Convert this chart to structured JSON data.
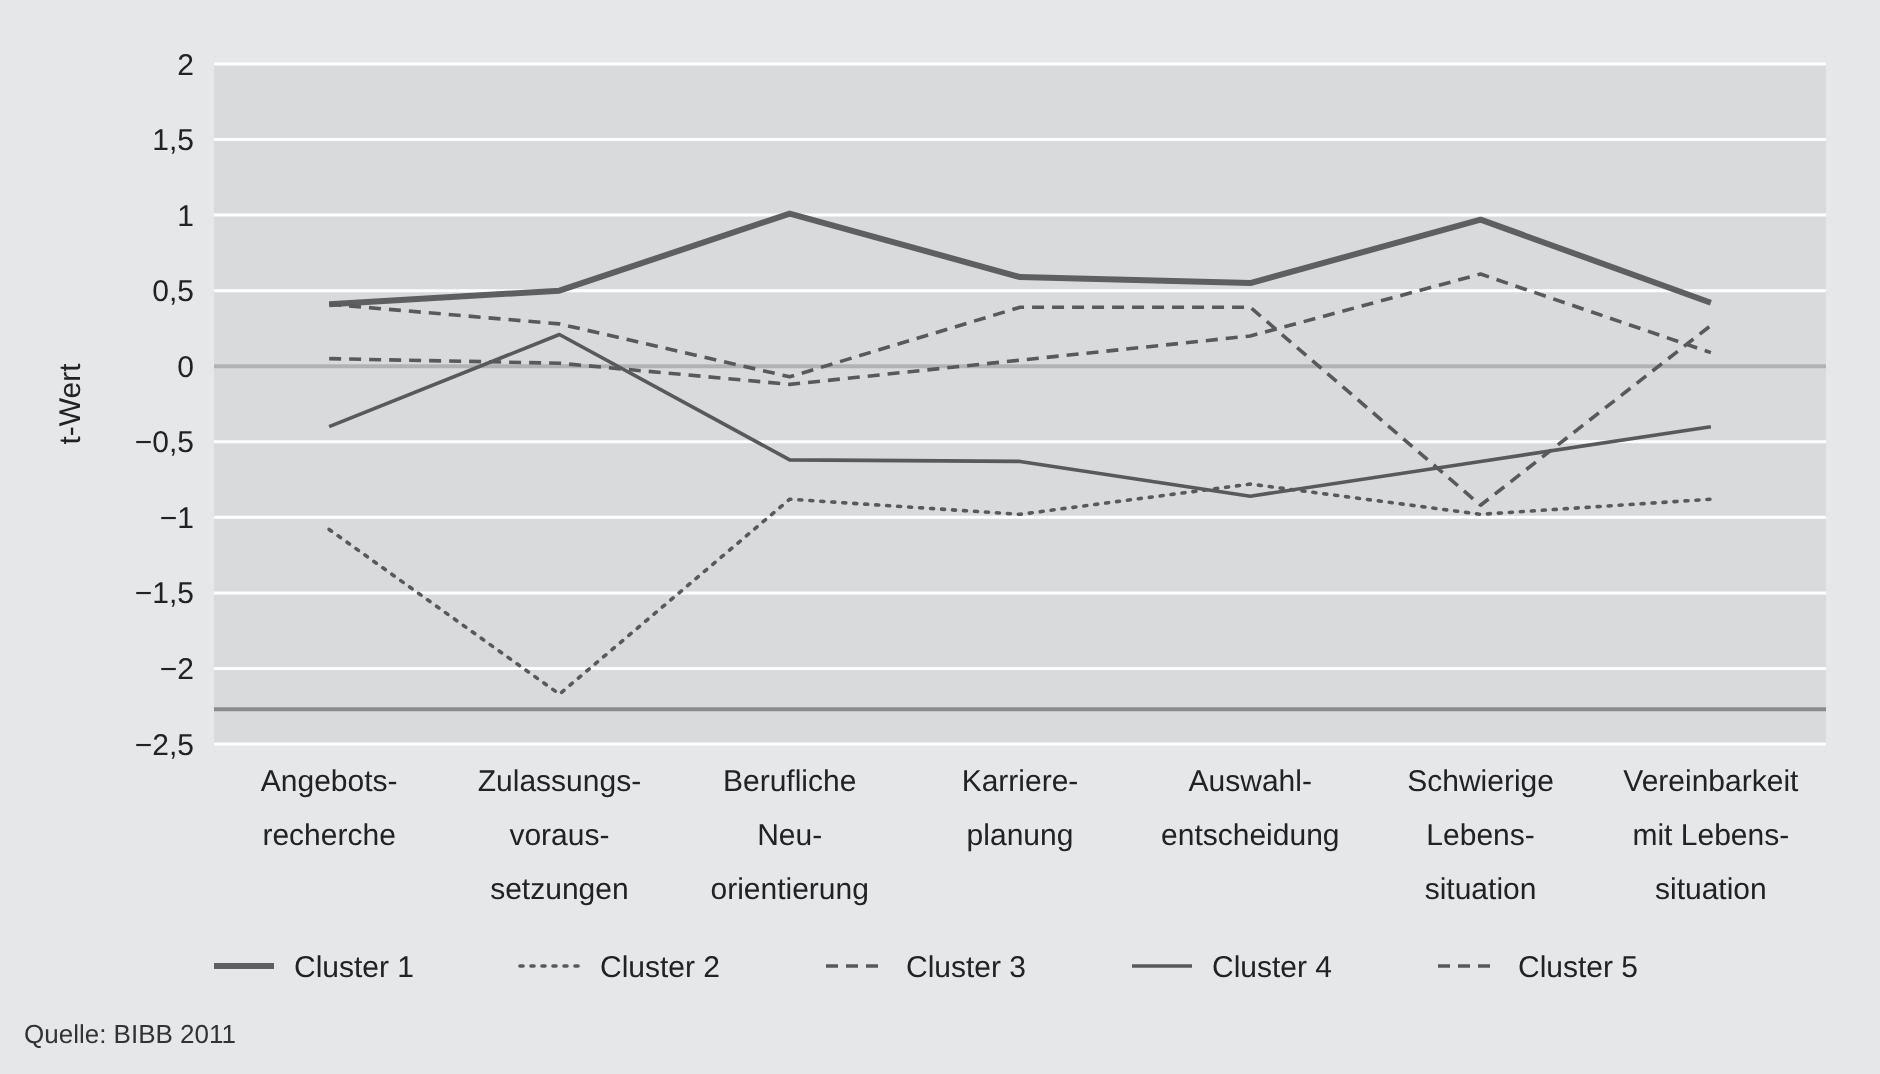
{
  "chart_data": {
    "type": "line",
    "ylabel": "t-Wert",
    "annotations": [
      "Quelle: BIBB 2011"
    ],
    "categories": [
      "Angebots-\nrecherche",
      "Zulassungs-\nvoraus-\nsetzungen",
      "Berufliche\nNeu-\norientierung",
      "Karriere-\nplanung",
      "Auswahl-\nentscheidung",
      "Schwierige\nLebens-\nsituation",
      "Vereinbarkeit\nmit Lebens-\nsituation"
    ],
    "series": [
      {
        "name": "Cluster 1",
        "color": "#5e5f61",
        "line_style": "solid",
        "values": [
          0.41,
          0.5,
          1.01,
          0.59,
          0.55,
          0.97,
          0.42
        ]
      },
      {
        "name": "Cluster 2",
        "color": "#58595b",
        "line_style": "dotted",
        "values": [
          -1.08,
          -2.17,
          -0.88,
          -0.98,
          -0.78,
          -0.98,
          -0.88
        ]
      },
      {
        "name": "Cluster 3",
        "color": "#58595b",
        "line_style": "dashed",
        "values": [
          0.05,
          0.02,
          -0.12,
          0.04,
          0.2,
          0.61,
          0.09
        ]
      },
      {
        "name": "Cluster 4",
        "color": "#58595b",
        "line_style": "solid",
        "values": [
          -0.4,
          0.21,
          -0.62,
          -0.63,
          -0.86,
          -0.63,
          -0.4
        ]
      },
      {
        "name": "Cluster 5",
        "color": "#58595b",
        "line_style": "dashed",
        "values": [
          0.41,
          0.28,
          -0.07,
          0.39,
          0.39,
          -0.92,
          0.27
        ]
      }
    ],
    "ylim": [
      -2.5,
      2
    ],
    "yticks": [
      {
        "value": -2.5,
        "label": "−2,5"
      },
      {
        "value": -2,
        "label": "−2"
      },
      {
        "value": -1.5,
        "label": "−1,5"
      },
      {
        "value": -1,
        "label": "−1"
      },
      {
        "value": -0.5,
        "label": "−0,5"
      },
      0,
      {
        "value": 0.5,
        "label": "0,5"
      },
      1,
      {
        "value": 1.5,
        "label": "1,5"
      },
      2
    ],
    "ref_lines": [
      {
        "axis": "y",
        "value": 0,
        "color": "#b1b2b4"
      },
      {
        "axis": "y",
        "value": -2.27,
        "color": "#8a8b8d"
      }
    ],
    "grid": "y",
    "legend": "bottom",
    "marker": "none"
  }
}
